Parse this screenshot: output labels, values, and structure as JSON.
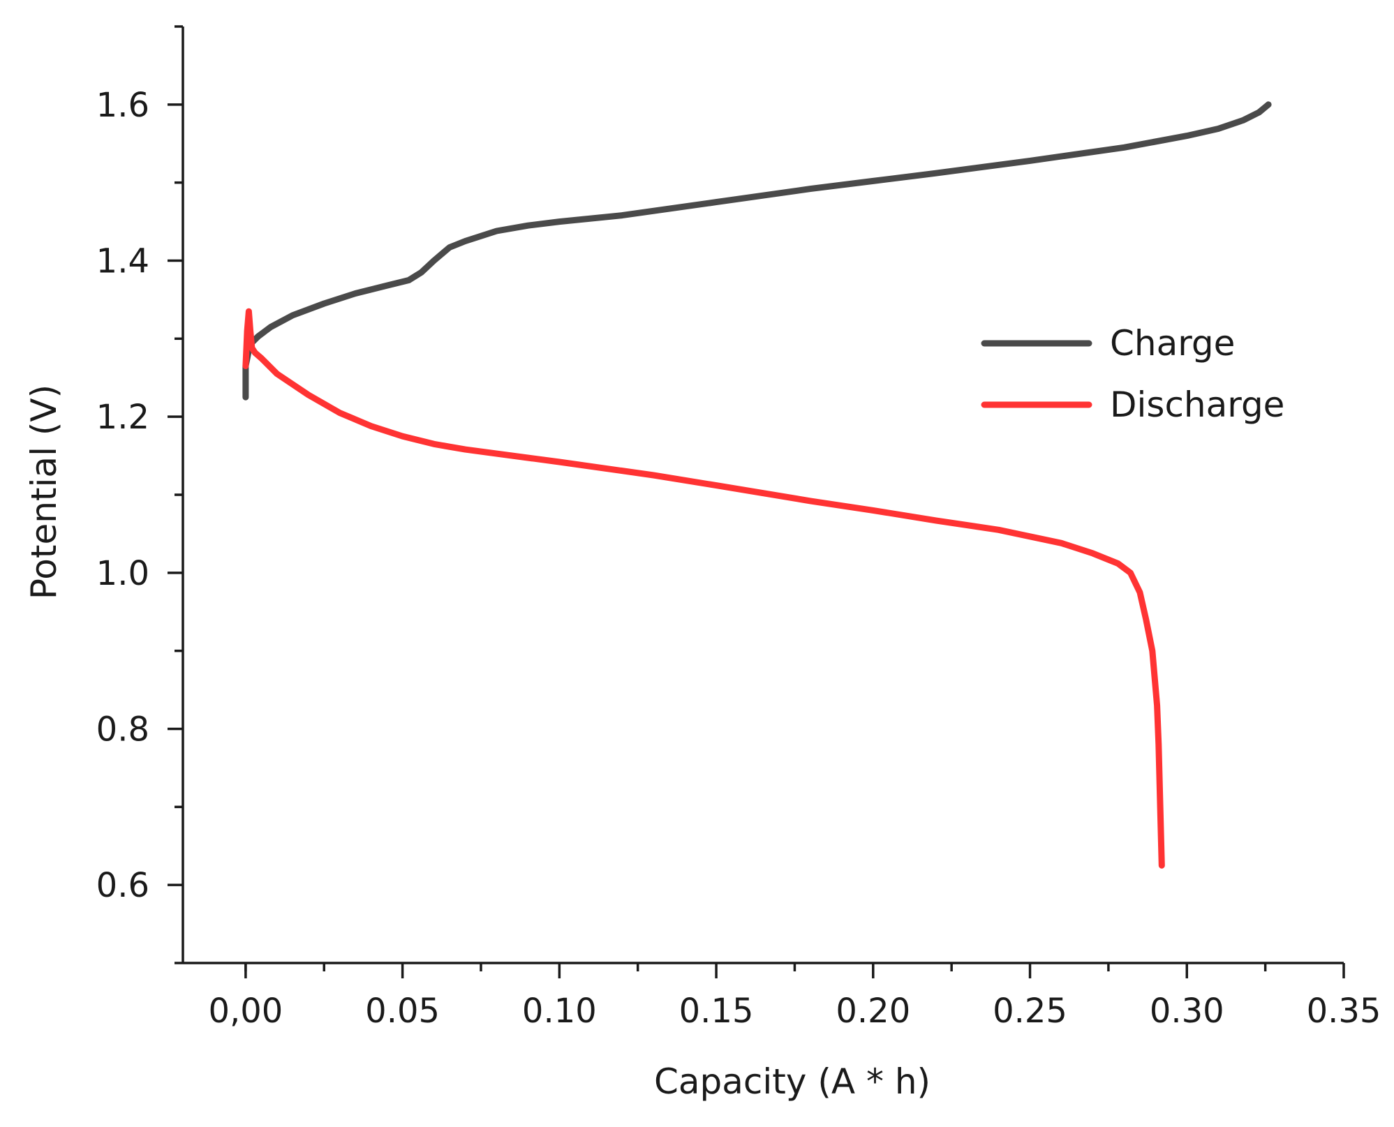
{
  "chart_data": {
    "type": "line",
    "title": "",
    "xlabel": "Capacity (A * h)",
    "ylabel": "Potential (V)",
    "xlim": [
      -0.02,
      0.35
    ],
    "ylim": [
      0.5,
      1.7
    ],
    "x_ticks": [
      0.0,
      0.05,
      0.1,
      0.15,
      0.2,
      0.25,
      0.3,
      0.35
    ],
    "x_tick_labels": [
      "0,00",
      "0.05",
      "0.10",
      "0.15",
      "0.20",
      "0.25",
      "0.30",
      "0.35"
    ],
    "y_ticks": [
      0.6,
      0.8,
      1.0,
      1.2,
      1.4,
      1.6
    ],
    "y_tick_labels": [
      "0.6",
      "0.8",
      "1.0",
      "1.2",
      "1.4",
      "1.6"
    ],
    "grid": false,
    "legend_position": "right",
    "series": [
      {
        "name": "Charge",
        "color": "#4a4a4a",
        "x": [
          0.0,
          0.0,
          0.001,
          0.002,
          0.004,
          0.008,
          0.015,
          0.025,
          0.035,
          0.045,
          0.052,
          0.056,
          0.06,
          0.065,
          0.07,
          0.08,
          0.09,
          0.1,
          0.12,
          0.15,
          0.18,
          0.2,
          0.22,
          0.25,
          0.28,
          0.3,
          0.31,
          0.318,
          0.323,
          0.326
        ],
        "y": [
          1.225,
          1.265,
          1.285,
          1.295,
          1.303,
          1.315,
          1.33,
          1.345,
          1.358,
          1.368,
          1.375,
          1.385,
          1.4,
          1.417,
          1.425,
          1.438,
          1.445,
          1.45,
          1.458,
          1.475,
          1.492,
          1.502,
          1.512,
          1.528,
          1.545,
          1.56,
          1.569,
          1.58,
          1.59,
          1.6
        ]
      },
      {
        "name": "Discharge",
        "color": "#ff3333",
        "x": [
          0.0,
          0.0005,
          0.001,
          0.0015,
          0.002,
          0.003,
          0.005,
          0.01,
          0.02,
          0.03,
          0.04,
          0.05,
          0.06,
          0.07,
          0.1,
          0.13,
          0.15,
          0.18,
          0.2,
          0.22,
          0.24,
          0.26,
          0.27,
          0.278,
          0.282,
          0.285,
          0.287,
          0.289,
          0.2905,
          0.291,
          0.2915,
          0.292
        ],
        "y": [
          1.265,
          1.31,
          1.335,
          1.31,
          1.288,
          1.282,
          1.275,
          1.255,
          1.228,
          1.205,
          1.188,
          1.175,
          1.165,
          1.158,
          1.142,
          1.125,
          1.112,
          1.092,
          1.08,
          1.067,
          1.055,
          1.038,
          1.025,
          1.012,
          1.0,
          0.975,
          0.94,
          0.9,
          0.83,
          0.78,
          0.7,
          0.625
        ]
      }
    ]
  }
}
